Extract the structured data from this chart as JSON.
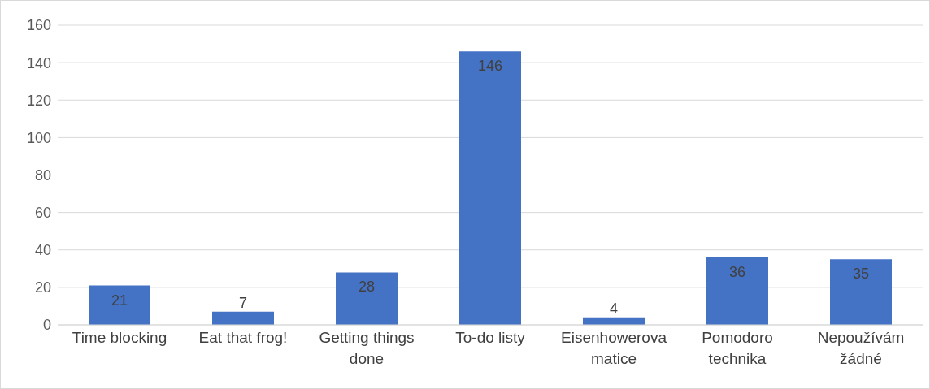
{
  "chart_data": {
    "type": "bar",
    "categories": [
      "Time blocking",
      "Eat that frog!",
      "Getting things done",
      "To-do listy",
      "Eisenhowerova matice",
      "Pomodoro technika",
      "Nepoužívám žádné"
    ],
    "values": [
      21,
      7,
      28,
      146,
      4,
      36,
      35
    ],
    "color": "#4472c4",
    "ylim": [
      0,
      160
    ],
    "yticks": [
      0,
      20,
      40,
      60,
      80,
      100,
      120,
      140,
      160
    ],
    "grid": "y",
    "data_labels": true,
    "legend": false
  }
}
